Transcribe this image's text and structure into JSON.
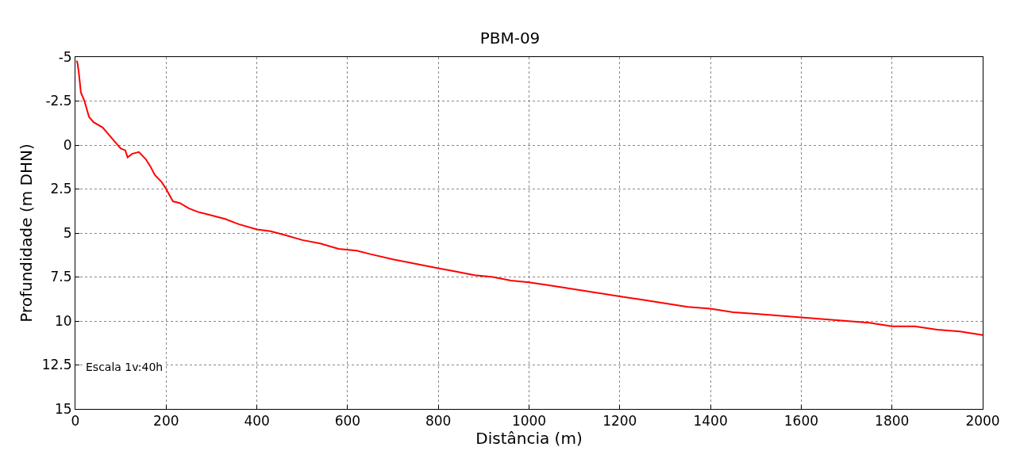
{
  "chart_data": {
    "type": "line",
    "title": "PBM-09",
    "xlabel": "Distância (m)",
    "ylabel": "Profundidade (m DHN)",
    "x": [
      3,
      5,
      8,
      12,
      20,
      30,
      40,
      60,
      80,
      100,
      110,
      115,
      125,
      140,
      155,
      165,
      175,
      190,
      200,
      215,
      230,
      250,
      270,
      300,
      330,
      360,
      400,
      430,
      460,
      500,
      540,
      580,
      620,
      650,
      700,
      740,
      780,
      800,
      840,
      880,
      920,
      960,
      1000,
      1050,
      1100,
      1150,
      1200,
      1250,
      1300,
      1350,
      1400,
      1450,
      1500,
      1550,
      1600,
      1650,
      1700,
      1750,
      1800,
      1850,
      1900,
      1950,
      2000
    ],
    "series": [
      {
        "color": "#ff0000",
        "values": [
          -4.8,
          -4.6,
          -4.0,
          -3.0,
          -2.5,
          -1.6,
          -1.3,
          -1.0,
          -0.4,
          0.2,
          0.3,
          0.7,
          0.5,
          0.4,
          0.8,
          1.2,
          1.7,
          2.1,
          2.5,
          3.2,
          3.3,
          3.6,
          3.8,
          4.0,
          4.2,
          4.5,
          4.8,
          4.9,
          5.1,
          5.4,
          5.6,
          5.9,
          6.0,
          6.2,
          6.5,
          6.7,
          6.9,
          7.0,
          7.2,
          7.4,
          7.5,
          7.7,
          7.8,
          8.0,
          8.2,
          8.4,
          8.6,
          8.8,
          9.0,
          9.2,
          9.3,
          9.5,
          9.6,
          9.7,
          9.8,
          9.9,
          10.0,
          10.1,
          10.3,
          10.3,
          10.5,
          10.6,
          10.8
        ]
      }
    ],
    "xlim": [
      0,
      2000
    ],
    "xticks": [
      0,
      200,
      400,
      600,
      800,
      1000,
      1200,
      1400,
      1600,
      1800,
      2000
    ],
    "ylim": [
      15,
      -5
    ],
    "yticks": [
      15,
      12.5,
      10,
      7.5,
      5,
      2.5,
      0,
      -2.5,
      -5
    ],
    "grid": true,
    "marker": "none",
    "line_style": "solid",
    "annotations": [
      "Escala 1v:40h"
    ]
  }
}
